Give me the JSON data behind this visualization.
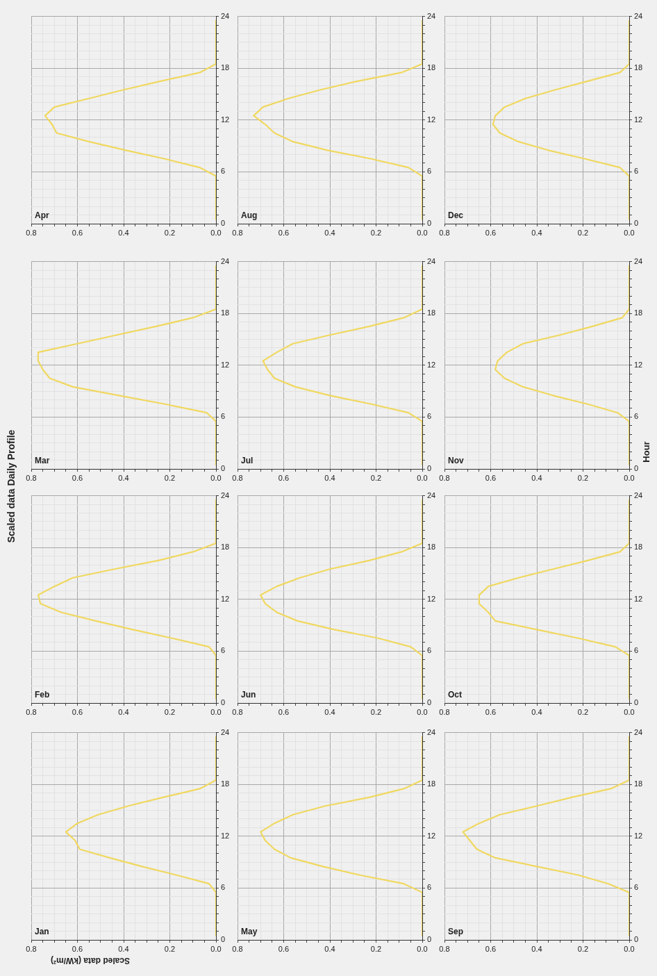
{
  "chart_data": [
    {
      "type": "line",
      "title": "Jan",
      "annotations": [
        "Scaled data Daily Profile"
      ],
      "xlabel": "Scaled data (kW/m²)",
      "color": "#f0d860",
      "marker": "none",
      "grid": true,
      "xlim": [
        0.8,
        0
      ],
      "ylim": [
        0,
        24
      ],
      "yticks": [
        0,
        {
          "value": 1,
          "label": null
        },
        {
          "value": 2,
          "label": null
        },
        {
          "value": 3,
          "label": null
        },
        {
          "value": 4,
          "label": null
        },
        {
          "value": 5,
          "label": null
        },
        6,
        {
          "value": 7,
          "label": null
        },
        {
          "value": 8,
          "label": null
        },
        {
          "value": 9,
          "label": null
        },
        {
          "value": 10,
          "label": null
        },
        {
          "value": 11,
          "label": null
        },
        12,
        {
          "value": 13,
          "label": null
        },
        {
          "value": 14,
          "label": null
        },
        {
          "value": 15,
          "label": null
        },
        {
          "value": 16,
          "label": null
        },
        {
          "value": 17,
          "label": null
        },
        18,
        {
          "value": 19,
          "label": null
        },
        {
          "value": 20,
          "label": null
        },
        {
          "value": 21,
          "label": null
        },
        {
          "value": 22,
          "label": null
        },
        {
          "value": 23,
          "label": null
        },
        24
      ],
      "xticks": [
        {
          "value": 0,
          "label": "0.0"
        },
        {
          "value": 0.05,
          "label": null
        },
        {
          "value": 0.1,
          "label": null
        },
        {
          "value": 0.15,
          "label": null
        },
        0.2,
        {
          "value": 0.25,
          "label": null
        },
        {
          "value": 0.3,
          "label": null
        },
        {
          "value": 0.35,
          "label": null
        },
        0.4,
        {
          "value": 0.45,
          "label": null
        },
        {
          "value": 0.5,
          "label": null
        },
        {
          "value": 0.55,
          "label": null
        },
        0.6,
        {
          "value": 0.65,
          "label": null
        },
        {
          "value": 0.7,
          "label": null
        },
        {
          "value": 0.75,
          "label": null
        },
        0.8
      ],
      "values": [
        0.5,
        1.5,
        2.5,
        3.5,
        4.5,
        5.5,
        6.5,
        7.5,
        8.5,
        9.5,
        10.5,
        11.5,
        12.5,
        13.5,
        14.5,
        15.5,
        16.5,
        17.5,
        18.5,
        19.5,
        20.5,
        21.5,
        22.5,
        23.5
      ],
      "x": [
        0,
        0,
        0,
        0,
        0,
        0,
        0.03,
        0.17,
        0.32,
        0.46,
        0.59,
        0.61,
        0.65,
        0.6,
        0.51,
        0.38,
        0.23,
        0.07,
        0,
        0,
        0,
        0,
        0,
        0
      ]
    },
    {
      "type": "line",
      "title": "Feb",
      "color": "#f0d860",
      "marker": "none",
      "grid": true,
      "xlim": [
        0.8,
        0
      ],
      "ylim": [
        0,
        24
      ],
      "yticks": [
        0,
        {
          "value": 1,
          "label": null
        },
        {
          "value": 2,
          "label": null
        },
        {
          "value": 3,
          "label": null
        },
        {
          "value": 4,
          "label": null
        },
        {
          "value": 5,
          "label": null
        },
        6,
        {
          "value": 7,
          "label": null
        },
        {
          "value": 8,
          "label": null
        },
        {
          "value": 9,
          "label": null
        },
        {
          "value": 10,
          "label": null
        },
        {
          "value": 11,
          "label": null
        },
        12,
        {
          "value": 13,
          "label": null
        },
        {
          "value": 14,
          "label": null
        },
        {
          "value": 15,
          "label": null
        },
        {
          "value": 16,
          "label": null
        },
        {
          "value": 17,
          "label": null
        },
        18,
        {
          "value": 19,
          "label": null
        },
        {
          "value": 20,
          "label": null
        },
        {
          "value": 21,
          "label": null
        },
        {
          "value": 22,
          "label": null
        },
        {
          "value": 23,
          "label": null
        },
        24
      ],
      "xticks": [
        {
          "value": 0,
          "label": "0.0"
        },
        {
          "value": 0.05,
          "label": null
        },
        {
          "value": 0.1,
          "label": null
        },
        {
          "value": 0.15,
          "label": null
        },
        0.2,
        {
          "value": 0.25,
          "label": null
        },
        {
          "value": 0.3,
          "label": null
        },
        {
          "value": 0.35,
          "label": null
        },
        0.4,
        {
          "value": 0.45,
          "label": null
        },
        {
          "value": 0.5,
          "label": null
        },
        {
          "value": 0.55,
          "label": null
        },
        0.6,
        {
          "value": 0.65,
          "label": null
        },
        {
          "value": 0.7,
          "label": null
        },
        {
          "value": 0.75,
          "label": null
        },
        0.8
      ],
      "values": [
        0.5,
        1.5,
        2.5,
        3.5,
        4.5,
        5.5,
        6.5,
        7.5,
        8.5,
        9.5,
        10.5,
        11.5,
        12.5,
        13.5,
        14.5,
        15.5,
        16.5,
        17.5,
        18.5,
        19.5,
        20.5,
        21.5,
        22.5,
        23.5
      ],
      "x": [
        0,
        0,
        0,
        0,
        0,
        0,
        0.03,
        0.19,
        0.36,
        0.52,
        0.67,
        0.76,
        0.77,
        0.7,
        0.62,
        0.44,
        0.25,
        0.1,
        0,
        0,
        0,
        0,
        0,
        0
      ]
    },
    {
      "type": "line",
      "title": "Mar",
      "color": "#f0d860",
      "marker": "none",
      "grid": true,
      "xlim": [
        0.8,
        0
      ],
      "ylim": [
        0,
        24
      ],
      "yticks": [
        0,
        {
          "value": 1,
          "label": null
        },
        {
          "value": 2,
          "label": null
        },
        {
          "value": 3,
          "label": null
        },
        {
          "value": 4,
          "label": null
        },
        {
          "value": 5,
          "label": null
        },
        6,
        {
          "value": 7,
          "label": null
        },
        {
          "value": 8,
          "label": null
        },
        {
          "value": 9,
          "label": null
        },
        {
          "value": 10,
          "label": null
        },
        {
          "value": 11,
          "label": null
        },
        12,
        {
          "value": 13,
          "label": null
        },
        {
          "value": 14,
          "label": null
        },
        {
          "value": 15,
          "label": null
        },
        {
          "value": 16,
          "label": null
        },
        {
          "value": 17,
          "label": null
        },
        18,
        {
          "value": 19,
          "label": null
        },
        {
          "value": 20,
          "label": null
        },
        {
          "value": 21,
          "label": null
        },
        {
          "value": 22,
          "label": null
        },
        {
          "value": 23,
          "label": null
        },
        24
      ],
      "xticks": [
        {
          "value": 0,
          "label": "0.0"
        },
        {
          "value": 0.05,
          "label": null
        },
        {
          "value": 0.1,
          "label": null
        },
        {
          "value": 0.15,
          "label": null
        },
        0.2,
        {
          "value": 0.25,
          "label": null
        },
        {
          "value": 0.3,
          "label": null
        },
        {
          "value": 0.35,
          "label": null
        },
        0.4,
        {
          "value": 0.45,
          "label": null
        },
        {
          "value": 0.5,
          "label": null
        },
        {
          "value": 0.55,
          "label": null
        },
        0.6,
        {
          "value": 0.65,
          "label": null
        },
        {
          "value": 0.7,
          "label": null
        },
        {
          "value": 0.75,
          "label": null
        },
        0.8
      ],
      "values": [
        0.5,
        1.5,
        2.5,
        3.5,
        4.5,
        5.5,
        6.5,
        7.5,
        8.5,
        9.5,
        10.5,
        11.5,
        12.5,
        13.5,
        14.5,
        15.5,
        16.5,
        17.5,
        18.5,
        19.5,
        20.5,
        21.5,
        22.5,
        23.5
      ],
      "x": [
        0,
        0,
        0,
        0,
        0,
        0,
        0.04,
        0.22,
        0.42,
        0.62,
        0.72,
        0.75,
        0.77,
        0.77,
        0.6,
        0.43,
        0.26,
        0.1,
        0,
        0,
        0,
        0,
        0,
        0
      ]
    },
    {
      "type": "line",
      "title": "Apr",
      "color": "#f0d860",
      "marker": "none",
      "grid": true,
      "xlim": [
        0.8,
        0
      ],
      "ylim": [
        0,
        24
      ],
      "yticks": [
        0,
        {
          "value": 1,
          "label": null
        },
        {
          "value": 2,
          "label": null
        },
        {
          "value": 3,
          "label": null
        },
        {
          "value": 4,
          "label": null
        },
        {
          "value": 5,
          "label": null
        },
        6,
        {
          "value": 7,
          "label": null
        },
        {
          "value": 8,
          "label": null
        },
        {
          "value": 9,
          "label": null
        },
        {
          "value": 10,
          "label": null
        },
        {
          "value": 11,
          "label": null
        },
        12,
        {
          "value": 13,
          "label": null
        },
        {
          "value": 14,
          "label": null
        },
        {
          "value": 15,
          "label": null
        },
        {
          "value": 16,
          "label": null
        },
        {
          "value": 17,
          "label": null
        },
        18,
        {
          "value": 19,
          "label": null
        },
        {
          "value": 20,
          "label": null
        },
        {
          "value": 21,
          "label": null
        },
        {
          "value": 22,
          "label": null
        },
        {
          "value": 23,
          "label": null
        },
        24
      ],
      "xticks": [
        {
          "value": 0,
          "label": "0.0"
        },
        {
          "value": 0.05,
          "label": null
        },
        {
          "value": 0.1,
          "label": null
        },
        {
          "value": 0.15,
          "label": null
        },
        0.2,
        {
          "value": 0.25,
          "label": null
        },
        {
          "value": 0.3,
          "label": null
        },
        {
          "value": 0.35,
          "label": null
        },
        0.4,
        {
          "value": 0.45,
          "label": null
        },
        {
          "value": 0.5,
          "label": null
        },
        {
          "value": 0.55,
          "label": null
        },
        0.6,
        {
          "value": 0.65,
          "label": null
        },
        {
          "value": 0.7,
          "label": null
        },
        {
          "value": 0.75,
          "label": null
        },
        0.8
      ],
      "values": [
        0.5,
        1.5,
        2.5,
        3.5,
        4.5,
        5.5,
        6.5,
        7.5,
        8.5,
        9.5,
        10.5,
        11.5,
        12.5,
        13.5,
        14.5,
        15.5,
        16.5,
        17.5,
        18.5,
        19.5,
        20.5,
        21.5,
        22.5,
        23.5
      ],
      "x": [
        0,
        0,
        0,
        0,
        0,
        0,
        0.07,
        0.22,
        0.39,
        0.55,
        0.69,
        0.71,
        0.74,
        0.7,
        0.55,
        0.4,
        0.24,
        0.07,
        0,
        0,
        0,
        0,
        0,
        0
      ]
    },
    {
      "type": "line",
      "title": "May",
      "color": "#f0d860",
      "marker": "none",
      "grid": true,
      "xlim": [
        0.8,
        0
      ],
      "ylim": [
        0,
        24
      ],
      "yticks": [
        0,
        {
          "value": 1,
          "label": null
        },
        {
          "value": 2,
          "label": null
        },
        {
          "value": 3,
          "label": null
        },
        {
          "value": 4,
          "label": null
        },
        {
          "value": 5,
          "label": null
        },
        6,
        {
          "value": 7,
          "label": null
        },
        {
          "value": 8,
          "label": null
        },
        {
          "value": 9,
          "label": null
        },
        {
          "value": 10,
          "label": null
        },
        {
          "value": 11,
          "label": null
        },
        12,
        {
          "value": 13,
          "label": null
        },
        {
          "value": 14,
          "label": null
        },
        {
          "value": 15,
          "label": null
        },
        {
          "value": 16,
          "label": null
        },
        {
          "value": 17,
          "label": null
        },
        18,
        {
          "value": 19,
          "label": null
        },
        {
          "value": 20,
          "label": null
        },
        {
          "value": 21,
          "label": null
        },
        {
          "value": 22,
          "label": null
        },
        {
          "value": 23,
          "label": null
        },
        24
      ],
      "xticks": [
        {
          "value": 0,
          "label": "0.0"
        },
        {
          "value": 0.05,
          "label": null
        },
        {
          "value": 0.1,
          "label": null
        },
        {
          "value": 0.15,
          "label": null
        },
        0.2,
        {
          "value": 0.25,
          "label": null
        },
        {
          "value": 0.3,
          "label": null
        },
        {
          "value": 0.35,
          "label": null
        },
        0.4,
        {
          "value": 0.45,
          "label": null
        },
        {
          "value": 0.5,
          "label": null
        },
        {
          "value": 0.55,
          "label": null
        },
        0.6,
        {
          "value": 0.65,
          "label": null
        },
        {
          "value": 0.7,
          "label": null
        },
        {
          "value": 0.75,
          "label": null
        },
        0.8
      ],
      "values": [
        0.5,
        1.5,
        2.5,
        3.5,
        4.5,
        5.5,
        6.5,
        7.5,
        8.5,
        9.5,
        10.5,
        11.5,
        12.5,
        13.5,
        14.5,
        15.5,
        16.5,
        17.5,
        18.5,
        19.5,
        20.5,
        21.5,
        22.5,
        23.5
      ],
      "x": [
        0,
        0,
        0,
        0,
        0,
        0,
        0.08,
        0.27,
        0.43,
        0.57,
        0.64,
        0.68,
        0.7,
        0.64,
        0.56,
        0.42,
        0.23,
        0.08,
        0,
        0,
        0,
        0,
        0,
        0
      ]
    },
    {
      "type": "line",
      "title": "Jun",
      "color": "#f0d860",
      "marker": "none",
      "grid": true,
      "xlim": [
        0.8,
        0
      ],
      "ylim": [
        0,
        24
      ],
      "yticks": [
        0,
        {
          "value": 1,
          "label": null
        },
        {
          "value": 2,
          "label": null
        },
        {
          "value": 3,
          "label": null
        },
        {
          "value": 4,
          "label": null
        },
        {
          "value": 5,
          "label": null
        },
        6,
        {
          "value": 7,
          "label": null
        },
        {
          "value": 8,
          "label": null
        },
        {
          "value": 9,
          "label": null
        },
        {
          "value": 10,
          "label": null
        },
        {
          "value": 11,
          "label": null
        },
        12,
        {
          "value": 13,
          "label": null
        },
        {
          "value": 14,
          "label": null
        },
        {
          "value": 15,
          "label": null
        },
        {
          "value": 16,
          "label": null
        },
        {
          "value": 17,
          "label": null
        },
        18,
        {
          "value": 19,
          "label": null
        },
        {
          "value": 20,
          "label": null
        },
        {
          "value": 21,
          "label": null
        },
        {
          "value": 22,
          "label": null
        },
        {
          "value": 23,
          "label": null
        },
        24
      ],
      "xticks": [
        {
          "value": 0,
          "label": "0.0"
        },
        {
          "value": 0.05,
          "label": null
        },
        {
          "value": 0.1,
          "label": null
        },
        {
          "value": 0.15,
          "label": null
        },
        0.2,
        {
          "value": 0.25,
          "label": null
        },
        {
          "value": 0.3,
          "label": null
        },
        {
          "value": 0.35,
          "label": null
        },
        0.4,
        {
          "value": 0.45,
          "label": null
        },
        {
          "value": 0.5,
          "label": null
        },
        {
          "value": 0.55,
          "label": null
        },
        0.6,
        {
          "value": 0.65,
          "label": null
        },
        {
          "value": 0.7,
          "label": null
        },
        {
          "value": 0.75,
          "label": null
        },
        0.8
      ],
      "values": [
        0.5,
        1.5,
        2.5,
        3.5,
        4.5,
        5.5,
        6.5,
        7.5,
        8.5,
        9.5,
        10.5,
        11.5,
        12.5,
        13.5,
        14.5,
        15.5,
        16.5,
        17.5,
        18.5,
        19.5,
        20.5,
        21.5,
        22.5,
        23.5
      ],
      "x": [
        0,
        0,
        0,
        0,
        0,
        0,
        0.05,
        0.19,
        0.38,
        0.54,
        0.63,
        0.68,
        0.7,
        0.63,
        0.53,
        0.4,
        0.23,
        0.09,
        0,
        0,
        0,
        0,
        0,
        0
      ]
    },
    {
      "type": "line",
      "title": "Jul",
      "color": "#f0d860",
      "marker": "none",
      "grid": true,
      "xlim": [
        0.8,
        0
      ],
      "ylim": [
        0,
        24
      ],
      "yticks": [
        0,
        {
          "value": 1,
          "label": null
        },
        {
          "value": 2,
          "label": null
        },
        {
          "value": 3,
          "label": null
        },
        {
          "value": 4,
          "label": null
        },
        {
          "value": 5,
          "label": null
        },
        6,
        {
          "value": 7,
          "label": null
        },
        {
          "value": 8,
          "label": null
        },
        {
          "value": 9,
          "label": null
        },
        {
          "value": 10,
          "label": null
        },
        {
          "value": 11,
          "label": null
        },
        12,
        {
          "value": 13,
          "label": null
        },
        {
          "value": 14,
          "label": null
        },
        {
          "value": 15,
          "label": null
        },
        {
          "value": 16,
          "label": null
        },
        {
          "value": 17,
          "label": null
        },
        18,
        {
          "value": 19,
          "label": null
        },
        {
          "value": 20,
          "label": null
        },
        {
          "value": 21,
          "label": null
        },
        {
          "value": 22,
          "label": null
        },
        {
          "value": 23,
          "label": null
        },
        24
      ],
      "xticks": [
        {
          "value": 0,
          "label": "0.0"
        },
        {
          "value": 0.05,
          "label": null
        },
        {
          "value": 0.1,
          "label": null
        },
        {
          "value": 0.15,
          "label": null
        },
        0.2,
        {
          "value": 0.25,
          "label": null
        },
        {
          "value": 0.3,
          "label": null
        },
        {
          "value": 0.35,
          "label": null
        },
        0.4,
        {
          "value": 0.45,
          "label": null
        },
        {
          "value": 0.5,
          "label": null
        },
        {
          "value": 0.55,
          "label": null
        },
        0.6,
        {
          "value": 0.65,
          "label": null
        },
        {
          "value": 0.7,
          "label": null
        },
        {
          "value": 0.75,
          "label": null
        },
        0.8
      ],
      "values": [
        0.5,
        1.5,
        2.5,
        3.5,
        4.5,
        5.5,
        6.5,
        7.5,
        8.5,
        9.5,
        10.5,
        11.5,
        12.5,
        13.5,
        14.5,
        15.5,
        16.5,
        17.5,
        18.5,
        19.5,
        20.5,
        21.5,
        22.5,
        23.5
      ],
      "x": [
        0,
        0,
        0,
        0,
        0,
        0,
        0.06,
        0.22,
        0.4,
        0.55,
        0.64,
        0.67,
        0.69,
        0.63,
        0.56,
        0.4,
        0.23,
        0.08,
        0,
        0,
        0,
        0,
        0,
        0
      ]
    },
    {
      "type": "line",
      "title": "Aug",
      "color": "#f0d860",
      "marker": "none",
      "grid": true,
      "xlim": [
        0.8,
        0
      ],
      "ylim": [
        0,
        24
      ],
      "yticks": [
        0,
        {
          "value": 1,
          "label": null
        },
        {
          "value": 2,
          "label": null
        },
        {
          "value": 3,
          "label": null
        },
        {
          "value": 4,
          "label": null
        },
        {
          "value": 5,
          "label": null
        },
        6,
        {
          "value": 7,
          "label": null
        },
        {
          "value": 8,
          "label": null
        },
        {
          "value": 9,
          "label": null
        },
        {
          "value": 10,
          "label": null
        },
        {
          "value": 11,
          "label": null
        },
        12,
        {
          "value": 13,
          "label": null
        },
        {
          "value": 14,
          "label": null
        },
        {
          "value": 15,
          "label": null
        },
        {
          "value": 16,
          "label": null
        },
        {
          "value": 17,
          "label": null
        },
        18,
        {
          "value": 19,
          "label": null
        },
        {
          "value": 20,
          "label": null
        },
        {
          "value": 21,
          "label": null
        },
        {
          "value": 22,
          "label": null
        },
        {
          "value": 23,
          "label": null
        },
        24
      ],
      "xticks": [
        {
          "value": 0,
          "label": "0.0"
        },
        {
          "value": 0.05,
          "label": null
        },
        {
          "value": 0.1,
          "label": null
        },
        {
          "value": 0.15,
          "label": null
        },
        0.2,
        {
          "value": 0.25,
          "label": null
        },
        {
          "value": 0.3,
          "label": null
        },
        {
          "value": 0.35,
          "label": null
        },
        0.4,
        {
          "value": 0.45,
          "label": null
        },
        {
          "value": 0.5,
          "label": null
        },
        {
          "value": 0.55,
          "label": null
        },
        0.6,
        {
          "value": 0.65,
          "label": null
        },
        {
          "value": 0.7,
          "label": null
        },
        {
          "value": 0.75,
          "label": null
        },
        0.8
      ],
      "values": [
        0.5,
        1.5,
        2.5,
        3.5,
        4.5,
        5.5,
        6.5,
        7.5,
        8.5,
        9.5,
        10.5,
        11.5,
        12.5,
        13.5,
        14.5,
        15.5,
        16.5,
        17.5,
        18.5,
        19.5,
        20.5,
        21.5,
        22.5,
        23.5
      ],
      "x": [
        0,
        0,
        0,
        0,
        0,
        0,
        0.06,
        0.22,
        0.41,
        0.56,
        0.64,
        0.68,
        0.73,
        0.69,
        0.58,
        0.44,
        0.28,
        0.09,
        0,
        0,
        0,
        0,
        0,
        0
      ]
    },
    {
      "type": "line",
      "title": "Sep",
      "color": "#f0d860",
      "marker": "none",
      "grid": true,
      "xlim": [
        0.8,
        0
      ],
      "ylim": [
        0,
        24
      ],
      "yticks": [
        0,
        {
          "value": 1,
          "label": null
        },
        {
          "value": 2,
          "label": null
        },
        {
          "value": 3,
          "label": null
        },
        {
          "value": 4,
          "label": null
        },
        {
          "value": 5,
          "label": null
        },
        6,
        {
          "value": 7,
          "label": null
        },
        {
          "value": 8,
          "label": null
        },
        {
          "value": 9,
          "label": null
        },
        {
          "value": 10,
          "label": null
        },
        {
          "value": 11,
          "label": null
        },
        12,
        {
          "value": 13,
          "label": null
        },
        {
          "value": 14,
          "label": null
        },
        {
          "value": 15,
          "label": null
        },
        {
          "value": 16,
          "label": null
        },
        {
          "value": 17,
          "label": null
        },
        18,
        {
          "value": 19,
          "label": null
        },
        {
          "value": 20,
          "label": null
        },
        {
          "value": 21,
          "label": null
        },
        {
          "value": 22,
          "label": null
        },
        {
          "value": 23,
          "label": null
        },
        24
      ],
      "xticks": [
        {
          "value": 0,
          "label": "0.0"
        },
        {
          "value": 0.05,
          "label": null
        },
        {
          "value": 0.1,
          "label": null
        },
        {
          "value": 0.15,
          "label": null
        },
        0.2,
        {
          "value": 0.25,
          "label": null
        },
        {
          "value": 0.3,
          "label": null
        },
        {
          "value": 0.35,
          "label": null
        },
        0.4,
        {
          "value": 0.45,
          "label": null
        },
        {
          "value": 0.5,
          "label": null
        },
        {
          "value": 0.55,
          "label": null
        },
        0.6,
        {
          "value": 0.65,
          "label": null
        },
        {
          "value": 0.7,
          "label": null
        },
        {
          "value": 0.75,
          "label": null
        },
        0.8
      ],
      "values": [
        0.5,
        1.5,
        2.5,
        3.5,
        4.5,
        5.5,
        6.5,
        7.5,
        8.5,
        9.5,
        10.5,
        11.5,
        12.5,
        13.5,
        14.5,
        15.5,
        16.5,
        17.5,
        18.5,
        19.5,
        20.5,
        21.5,
        22.5,
        23.5
      ],
      "x": [
        0,
        0,
        0,
        0,
        0,
        0,
        0.09,
        0.22,
        0.4,
        0.58,
        0.66,
        0.69,
        0.72,
        0.65,
        0.56,
        0.4,
        0.25,
        0.08,
        0,
        0,
        0,
        0,
        0,
        0
      ]
    },
    {
      "type": "line",
      "title": "Oct",
      "color": "#f0d860",
      "marker": "none",
      "grid": true,
      "xlim": [
        0.8,
        0
      ],
      "ylim": [
        0,
        24
      ],
      "yticks": [
        0,
        {
          "value": 1,
          "label": null
        },
        {
          "value": 2,
          "label": null
        },
        {
          "value": 3,
          "label": null
        },
        {
          "value": 4,
          "label": null
        },
        {
          "value": 5,
          "label": null
        },
        6,
        {
          "value": 7,
          "label": null
        },
        {
          "value": 8,
          "label": null
        },
        {
          "value": 9,
          "label": null
        },
        {
          "value": 10,
          "label": null
        },
        {
          "value": 11,
          "label": null
        },
        12,
        {
          "value": 13,
          "label": null
        },
        {
          "value": 14,
          "label": null
        },
        {
          "value": 15,
          "label": null
        },
        {
          "value": 16,
          "label": null
        },
        {
          "value": 17,
          "label": null
        },
        18,
        {
          "value": 19,
          "label": null
        },
        {
          "value": 20,
          "label": null
        },
        {
          "value": 21,
          "label": null
        },
        {
          "value": 22,
          "label": null
        },
        {
          "value": 23,
          "label": null
        },
        24
      ],
      "xticks": [
        {
          "value": 0,
          "label": "0.0"
        },
        {
          "value": 0.05,
          "label": null
        },
        {
          "value": 0.1,
          "label": null
        },
        {
          "value": 0.15,
          "label": null
        },
        0.2,
        {
          "value": 0.25,
          "label": null
        },
        {
          "value": 0.3,
          "label": null
        },
        {
          "value": 0.35,
          "label": null
        },
        0.4,
        {
          "value": 0.45,
          "label": null
        },
        {
          "value": 0.5,
          "label": null
        },
        {
          "value": 0.55,
          "label": null
        },
        0.6,
        {
          "value": 0.65,
          "label": null
        },
        {
          "value": 0.7,
          "label": null
        },
        {
          "value": 0.75,
          "label": null
        },
        0.8
      ],
      "values": [
        0.5,
        1.5,
        2.5,
        3.5,
        4.5,
        5.5,
        6.5,
        7.5,
        8.5,
        9.5,
        10.5,
        11.5,
        12.5,
        13.5,
        14.5,
        15.5,
        16.5,
        17.5,
        18.5,
        19.5,
        20.5,
        21.5,
        22.5,
        23.5
      ],
      "x": [
        0,
        0,
        0,
        0,
        0,
        0,
        0.06,
        0.22,
        0.4,
        0.58,
        0.61,
        0.65,
        0.65,
        0.61,
        0.48,
        0.33,
        0.18,
        0.04,
        0,
        0,
        0,
        0,
        0,
        0
      ]
    },
    {
      "type": "line",
      "title": "Nov",
      "ylabel": "Hour",
      "color": "#f0d860",
      "marker": "none",
      "grid": true,
      "xlim": [
        0.8,
        0
      ],
      "ylim": [
        0,
        24
      ],
      "yticks": [
        0,
        {
          "value": 1,
          "label": null
        },
        {
          "value": 2,
          "label": null
        },
        {
          "value": 3,
          "label": null
        },
        {
          "value": 4,
          "label": null
        },
        {
          "value": 5,
          "label": null
        },
        6,
        {
          "value": 7,
          "label": null
        },
        {
          "value": 8,
          "label": null
        },
        {
          "value": 9,
          "label": null
        },
        {
          "value": 10,
          "label": null
        },
        {
          "value": 11,
          "label": null
        },
        12,
        {
          "value": 13,
          "label": null
        },
        {
          "value": 14,
          "label": null
        },
        {
          "value": 15,
          "label": null
        },
        {
          "value": 16,
          "label": null
        },
        {
          "value": 17,
          "label": null
        },
        18,
        {
          "value": 19,
          "label": null
        },
        {
          "value": 20,
          "label": null
        },
        {
          "value": 21,
          "label": null
        },
        {
          "value": 22,
          "label": null
        },
        {
          "value": 23,
          "label": null
        },
        24
      ],
      "xticks": [
        {
          "value": 0,
          "label": "0.0"
        },
        {
          "value": 0.05,
          "label": null
        },
        {
          "value": 0.1,
          "label": null
        },
        {
          "value": 0.15,
          "label": null
        },
        0.2,
        {
          "value": 0.25,
          "label": null
        },
        {
          "value": 0.3,
          "label": null
        },
        {
          "value": 0.35,
          "label": null
        },
        0.4,
        {
          "value": 0.45,
          "label": null
        },
        {
          "value": 0.5,
          "label": null
        },
        {
          "value": 0.55,
          "label": null
        },
        0.6,
        {
          "value": 0.65,
          "label": null
        },
        {
          "value": 0.7,
          "label": null
        },
        {
          "value": 0.75,
          "label": null
        },
        0.8
      ],
      "values": [
        0.5,
        1.5,
        2.5,
        3.5,
        4.5,
        5.5,
        6.5,
        7.5,
        8.5,
        9.5,
        10.5,
        11.5,
        12.5,
        13.5,
        14.5,
        15.5,
        16.5,
        17.5,
        18.5,
        19.5,
        20.5,
        21.5,
        22.5,
        23.5
      ],
      "x": [
        0,
        0,
        0,
        0,
        0,
        0,
        0.05,
        0.18,
        0.33,
        0.46,
        0.54,
        0.58,
        0.57,
        0.53,
        0.46,
        0.3,
        0.16,
        0.03,
        0,
        0,
        0,
        0,
        0,
        0
      ]
    },
    {
      "type": "line",
      "title": "Dec",
      "color": "#f0d860",
      "marker": "none",
      "grid": true,
      "xlim": [
        0.8,
        0
      ],
      "ylim": [
        0,
        24
      ],
      "yticks": [
        0,
        {
          "value": 1,
          "label": null
        },
        {
          "value": 2,
          "label": null
        },
        {
          "value": 3,
          "label": null
        },
        {
          "value": 4,
          "label": null
        },
        {
          "value": 5,
          "label": null
        },
        6,
        {
          "value": 7,
          "label": null
        },
        {
          "value": 8,
          "label": null
        },
        {
          "value": 9,
          "label": null
        },
        {
          "value": 10,
          "label": null
        },
        {
          "value": 11,
          "label": null
        },
        12,
        {
          "value": 13,
          "label": null
        },
        {
          "value": 14,
          "label": null
        },
        {
          "value": 15,
          "label": null
        },
        {
          "value": 16,
          "label": null
        },
        {
          "value": 17,
          "label": null
        },
        18,
        {
          "value": 19,
          "label": null
        },
        {
          "value": 20,
          "label": null
        },
        {
          "value": 21,
          "label": null
        },
        {
          "value": 22,
          "label": null
        },
        {
          "value": 23,
          "label": null
        },
        24
      ],
      "xticks": [
        {
          "value": 0,
          "label": "0.0"
        },
        {
          "value": 0.05,
          "label": null
        },
        {
          "value": 0.1,
          "label": null
        },
        {
          "value": 0.15,
          "label": null
        },
        0.2,
        {
          "value": 0.25,
          "label": null
        },
        {
          "value": 0.3,
          "label": null
        },
        {
          "value": 0.35,
          "label": null
        },
        0.4,
        {
          "value": 0.45,
          "label": null
        },
        {
          "value": 0.5,
          "label": null
        },
        {
          "value": 0.55,
          "label": null
        },
        0.6,
        {
          "value": 0.65,
          "label": null
        },
        {
          "value": 0.7,
          "label": null
        },
        {
          "value": 0.75,
          "label": null
        },
        0.8
      ],
      "values": [
        0.5,
        1.5,
        2.5,
        3.5,
        4.5,
        5.5,
        6.5,
        7.5,
        8.5,
        9.5,
        10.5,
        11.5,
        12.5,
        13.5,
        14.5,
        15.5,
        16.5,
        17.5,
        18.5,
        19.5,
        20.5,
        21.5,
        22.5,
        23.5
      ],
      "x": [
        0,
        0,
        0,
        0,
        0,
        0,
        0.04,
        0.19,
        0.35,
        0.48,
        0.56,
        0.59,
        0.58,
        0.54,
        0.45,
        0.32,
        0.18,
        0.04,
        0,
        0,
        0,
        0,
        0,
        0
      ]
    }
  ]
}
